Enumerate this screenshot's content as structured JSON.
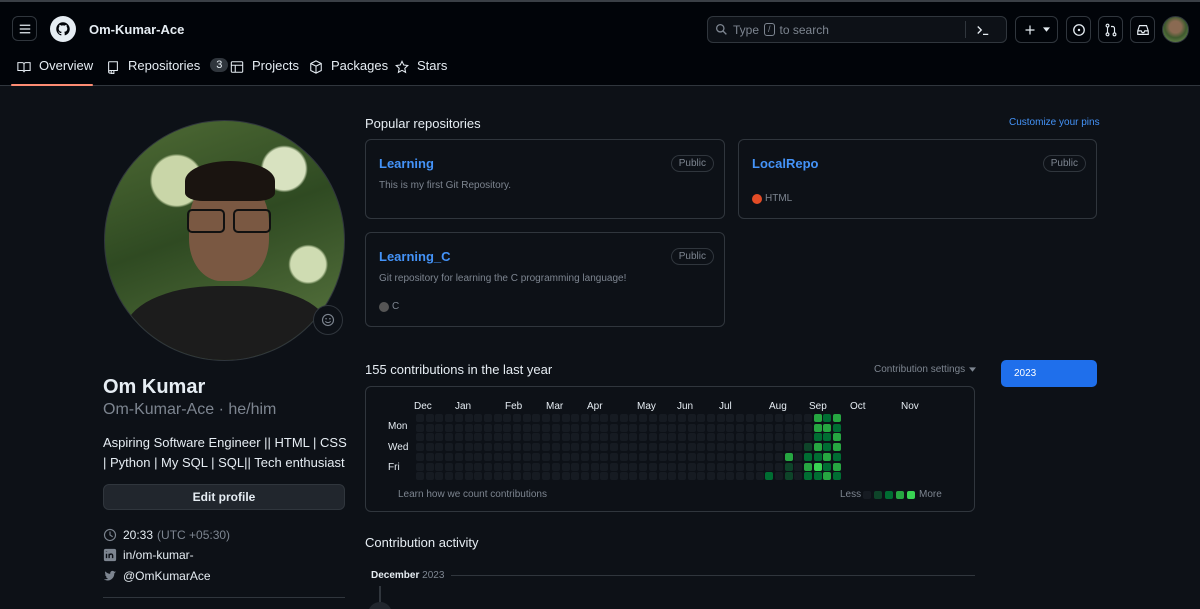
{
  "header": {
    "username": "Om-Kumar-Ace",
    "search_placeholder": "Type  to search",
    "search_hint_key": "/",
    "search_prefix": "Type",
    "search_suffix": "to search"
  },
  "tabs": [
    {
      "label": "Overview"
    },
    {
      "label": "Repositories",
      "count": "3"
    },
    {
      "label": "Projects"
    },
    {
      "label": "Packages"
    },
    {
      "label": "Stars"
    }
  ],
  "profile": {
    "name": "Om Kumar",
    "login": "Om-Kumar-Ace · he/him",
    "bio_line1": "Aspiring Software Engineer || HTML | CSS",
    "bio_line2": "| Python | My SQL | SQL|| Tech enthusiast",
    "edit_button": "Edit profile",
    "time": "20:33",
    "timezone": "(UTC +05:30)",
    "linkedin": "in/om-kumar-",
    "twitter": "@OmKumarAce"
  },
  "popular": {
    "title": "Popular repositories",
    "customize": "Customize your pins",
    "repos": [
      {
        "name": "Learning",
        "visibility": "Public",
        "description": "This is my first Git Repository.",
        "language": "",
        "lang_color": ""
      },
      {
        "name": "LocalRepo",
        "visibility": "Public",
        "description": "",
        "language": "HTML",
        "lang_color": "#e34c26"
      },
      {
        "name": "Learning_C",
        "visibility": "Public",
        "description": "Git repository for learning the C programming language!",
        "language": "C",
        "lang_color": "#555555"
      }
    ]
  },
  "contributions": {
    "title": "155 contributions in the last year",
    "settings": "Contribution settings",
    "year": "2023",
    "months": [
      "Dec",
      "Jan",
      "Feb",
      "Mar",
      "Apr",
      "May",
      "Jun",
      "Jul",
      "Aug",
      "Sep",
      "Oct",
      "Nov"
    ],
    "days": [
      "Mon",
      "Wed",
      "Fri"
    ],
    "learn_link": "Learn how we count contributions",
    "less": "Less",
    "more": "More",
    "colors": [
      "#161b22",
      "#0e4429",
      "#006d32",
      "#26a641",
      "#39d353"
    ],
    "active_cells": [
      {
        "week": 36,
        "day": 6,
        "level": 2
      },
      {
        "week": 38,
        "day": 4,
        "level": 3
      },
      {
        "week": 38,
        "day": 5,
        "level": 1
      },
      {
        "week": 38,
        "day": 6,
        "level": 1
      },
      {
        "week": 40,
        "day": 3,
        "level": 1
      },
      {
        "week": 40,
        "day": 4,
        "level": 2
      },
      {
        "week": 40,
        "day": 5,
        "level": 3
      },
      {
        "week": 40,
        "day": 6,
        "level": 2
      },
      {
        "week": 41,
        "day": 0,
        "level": 3
      },
      {
        "week": 41,
        "day": 1,
        "level": 3
      },
      {
        "week": 41,
        "day": 2,
        "level": 2
      },
      {
        "week": 41,
        "day": 3,
        "level": 3
      },
      {
        "week": 41,
        "day": 4,
        "level": 2
      },
      {
        "week": 41,
        "day": 5,
        "level": 4
      },
      {
        "week": 41,
        "day": 6,
        "level": 2
      },
      {
        "week": 42,
        "day": 0,
        "level": 2
      },
      {
        "week": 42,
        "day": 1,
        "level": 3
      },
      {
        "week": 42,
        "day": 2,
        "level": 2
      },
      {
        "week": 42,
        "day": 3,
        "level": 2
      },
      {
        "week": 42,
        "day": 4,
        "level": 3
      },
      {
        "week": 42,
        "day": 5,
        "level": 2
      },
      {
        "week": 42,
        "day": 6,
        "level": 3
      },
      {
        "week": 43,
        "day": 0,
        "level": 3
      },
      {
        "week": 43,
        "day": 1,
        "level": 2
      },
      {
        "week": 43,
        "day": 2,
        "level": 3
      },
      {
        "week": 43,
        "day": 3,
        "level": 3
      },
      {
        "week": 43,
        "day": 4,
        "level": 2
      },
      {
        "week": 43,
        "day": 5,
        "level": 3
      },
      {
        "week": 43,
        "day": 6,
        "level": 2
      }
    ]
  },
  "activity": {
    "title": "Contribution activity",
    "month": "December",
    "year": "2023"
  }
}
